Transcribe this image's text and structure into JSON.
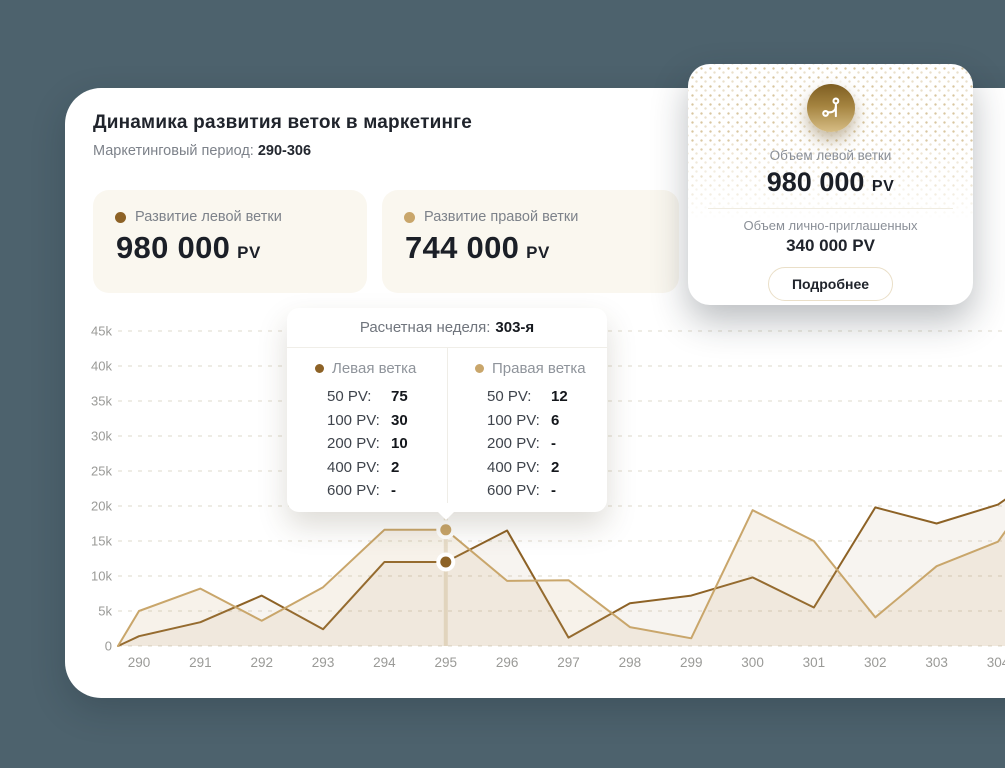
{
  "page": {
    "background_color": "#4d626d",
    "title": "Динамика развития веток в маркетинге",
    "period_label": "Маркетинговый период:",
    "period_value": "290-306"
  },
  "stat_cards": [
    {
      "label": "Развитие левой ветки",
      "value": "980 000",
      "unit": "PV",
      "dot_color": "#8d6226"
    },
    {
      "label": "Развитие правой ветки",
      "value": "744 000",
      "unit": "PV",
      "dot_color": "#c9a66b"
    }
  ],
  "summary_card": {
    "icon": "branch-coin-icon",
    "volume_label": "Объем левой ветки",
    "volume_value": "980 000",
    "volume_unit": "PV",
    "personal_label": "Объем лично-приглашенных",
    "personal_value": "340 000 PV",
    "button_label": "Подробнее"
  },
  "tooltip": {
    "header_label": "Расчетная неделя:",
    "header_value": "303-я",
    "columns": [
      {
        "title": "Левая ветка",
        "dot_color": "#8d6226",
        "rows": [
          {
            "label": "50 PV:",
            "value": "75"
          },
          {
            "label": "100 PV:",
            "value": "30"
          },
          {
            "label": "200 PV:",
            "value": "10"
          },
          {
            "label": "400 PV:",
            "value": "2"
          },
          {
            "label": "600 PV:",
            "value": "-"
          }
        ]
      },
      {
        "title": "Правая ветка",
        "dot_color": "#c9a66b",
        "rows": [
          {
            "label": "50 PV:",
            "value": "12"
          },
          {
            "label": "100 PV:",
            "value": "6"
          },
          {
            "label": "200 PV:",
            "value": "-"
          },
          {
            "label": "400 PV:",
            "value": "2"
          },
          {
            "label": "600 PV:",
            "value": "-"
          }
        ]
      }
    ]
  },
  "chart_data": {
    "type": "line",
    "title": "Динамика развития веток в маркетинге",
    "xlabel": "",
    "ylabel": "",
    "ylim": [
      0,
      45000
    ],
    "grid": "horizontal-dashed",
    "legend_position": "none",
    "categories": [
      290,
      291,
      292,
      293,
      294,
      295,
      296,
      297,
      298,
      299,
      300,
      301,
      302,
      303,
      304
    ],
    "y_ticks": [
      {
        "value": 0,
        "label": "0"
      },
      {
        "value": 5000,
        "label": "5k"
      },
      {
        "value": 10000,
        "label": "10k"
      },
      {
        "value": 15000,
        "label": "15k"
      },
      {
        "value": 20000,
        "label": "20k"
      },
      {
        "value": 25000,
        "label": "25k"
      },
      {
        "value": 30000,
        "label": "30k"
      },
      {
        "value": 35000,
        "label": "35k"
      },
      {
        "value": 40000,
        "label": "40k"
      },
      {
        "value": 45000,
        "label": "45k"
      }
    ],
    "series": [
      {
        "name": "Левая ветка",
        "color": "#8d6226",
        "fill": "rgba(141,98,38,0.07)",
        "lead_in": 0,
        "lead_out": 21000,
        "values": [
          1400,
          3400,
          7200,
          2400,
          12000,
          12000,
          16500,
          1200,
          6100,
          7200,
          9800,
          5500,
          19800,
          17500,
          20200
        ]
      },
      {
        "name": "Правая ветка",
        "color": "#c9a66b",
        "fill": "rgba(201,166,107,0.14)",
        "lead_in": 0,
        "lead_out": 16500,
        "values": [
          5000,
          8200,
          3600,
          8400,
          16600,
          16600,
          9300,
          9400,
          2700,
          1100,
          19400,
          15000,
          4100,
          11400,
          14900
        ]
      }
    ],
    "hover_category": 295
  }
}
